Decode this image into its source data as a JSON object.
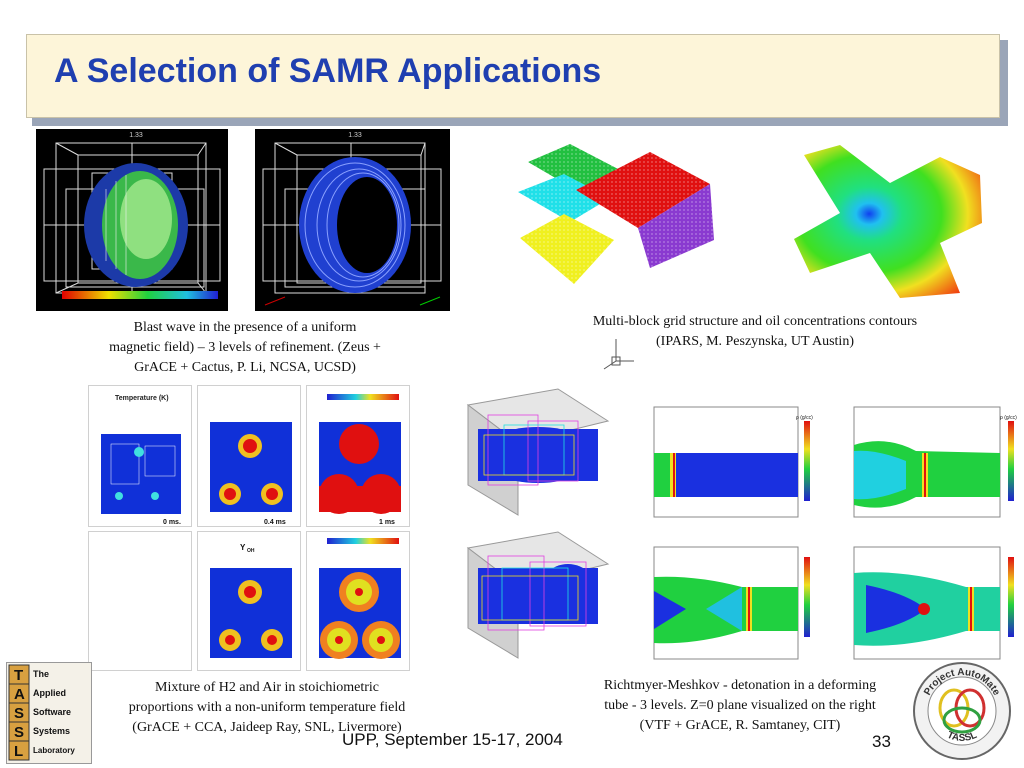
{
  "slide": {
    "title": "A Selection of SAMR Applications",
    "footer_left": "UPP, September 15-17, 2004",
    "page_number": "33"
  },
  "captions": {
    "blast": [
      "Blast wave in the presence of a uniform",
      "magnetic field) – 3 levels of refinement. (Zeus +",
      "GrACE + Cactus, P. Li,  NCSA, UCSD)"
    ],
    "multiblock": [
      "Multi-block grid structure and oil concentrations contours",
      "(IPARS, M. Peszynska, UT Austin)"
    ],
    "mixture": [
      "Mixture of H2 and Air in stoichiometric",
      "proportions with a non-uniform temperature field",
      "(GrACE + CCA, Jaideep Ray, SNL, Livermore)"
    ],
    "richtmyer": [
      "Richtmyer-Meshkov  - detonation in a deforming",
      "tube - 3 levels.  Z=0 plane visualized  on the right",
      "(VTF + GrACE, R. Samtaney, CIT)"
    ]
  },
  "plot_labels": {
    "temperature": "Temperature (K)",
    "t0": "0 ms.",
    "t1": "0.4 ms",
    "t2": "1 ms",
    "yoh": "Y",
    "yoh_sub": "OH",
    "rho": "ρ (g/cc)",
    "time_label": "1.33"
  },
  "logos": {
    "tassl_letters": [
      "T",
      "A",
      "S",
      "S",
      "L"
    ],
    "tassl_words": [
      "The",
      "Applied",
      "Software",
      "Systems",
      "Laboratory"
    ],
    "automate_top": "Project AutoMate",
    "automate_bottom": "TASSL"
  }
}
